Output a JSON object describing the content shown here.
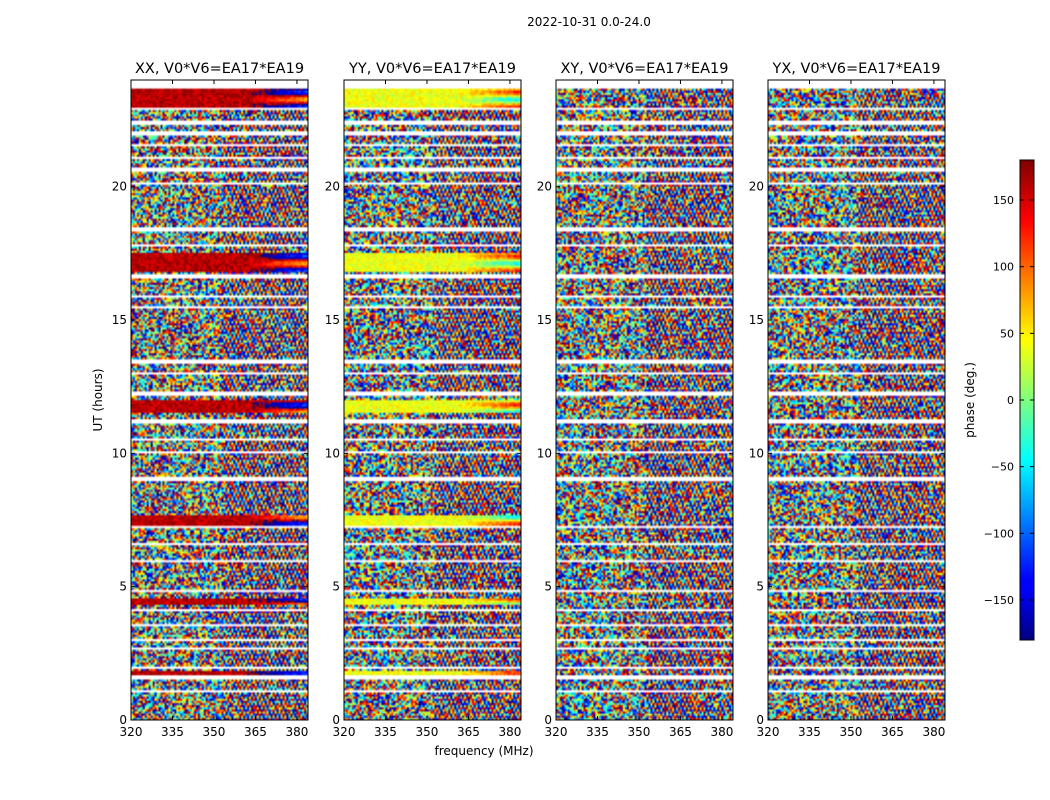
{
  "figure_title": "2022-10-31 0.0-24.0",
  "chart_data": {
    "type": "heatmap",
    "title": "2022-10-31 0.0-24.0",
    "xlabel": "frequency (MHz)",
    "ylabel": "UT (hours)",
    "xlim": [
      320,
      384
    ],
    "ylim": [
      0,
      24
    ],
    "x_ticks": [
      320,
      335,
      350,
      365,
      380
    ],
    "y_ticks": [
      0,
      5,
      10,
      15,
      20
    ],
    "panels": [
      {
        "title": "XX, V0*V6=EA17*EA19",
        "strong_offset": 160
      },
      {
        "title": "YY, V0*V6=EA17*EA19",
        "strong_offset": 40
      },
      {
        "title": "XY, V0*V6=EA17*EA19",
        "strong_offset": null
      },
      {
        "title": "YX, V0*V6=EA17*EA19",
        "strong_offset": null
      }
    ],
    "colorbar": {
      "label": "phase (deg.)",
      "colormap": "jet",
      "range": [
        -180,
        180
      ],
      "ticks": [
        150,
        100,
        50,
        0,
        -50,
        -100,
        -150
      ],
      "tick_labels": [
        "150",
        "100",
        "50",
        "0",
        "−50",
        "−100",
        "−150"
      ]
    },
    "flagged_bands_ut": [
      [
        23.7,
        24
      ],
      [
        22.88,
        23.0
      ],
      [
        22.35,
        22.45
      ],
      [
        21.95,
        22.05
      ],
      [
        21.5,
        21.6
      ],
      [
        21.05,
        21.15
      ],
      [
        20.6,
        20.7
      ],
      [
        20.05,
        20.2
      ],
      [
        18.35,
        18.45
      ],
      [
        17.75,
        17.85
      ],
      [
        16.6,
        16.7
      ],
      [
        15.85,
        15.95
      ],
      [
        15.45,
        15.55
      ],
      [
        13.35,
        13.55
      ],
      [
        12.95,
        13.05
      ],
      [
        12.2,
        12.3
      ],
      [
        11.15,
        11.25
      ],
      [
        10.5,
        10.6
      ],
      [
        10.0,
        10.08
      ],
      [
        9.0,
        9.08
      ],
      [
        7.2,
        7.3
      ],
      [
        6.6,
        6.68
      ],
      [
        5.9,
        5.98
      ],
      [
        4.8,
        4.88
      ],
      [
        4.1,
        4.2
      ],
      [
        3.55,
        3.63
      ],
      [
        2.95,
        3.03
      ],
      [
        2.6,
        2.68
      ],
      [
        1.95,
        2.03
      ],
      [
        1.55,
        1.68
      ],
      [
        1.05,
        1.13
      ]
    ],
    "coherent_bands_ut": [
      [
        23.0,
        23.7
      ],
      [
        16.8,
        17.5
      ],
      [
        11.5,
        12.0
      ],
      [
        7.3,
        7.7
      ],
      [
        4.3,
        4.6
      ],
      [
        1.65,
        1.85
      ]
    ]
  }
}
